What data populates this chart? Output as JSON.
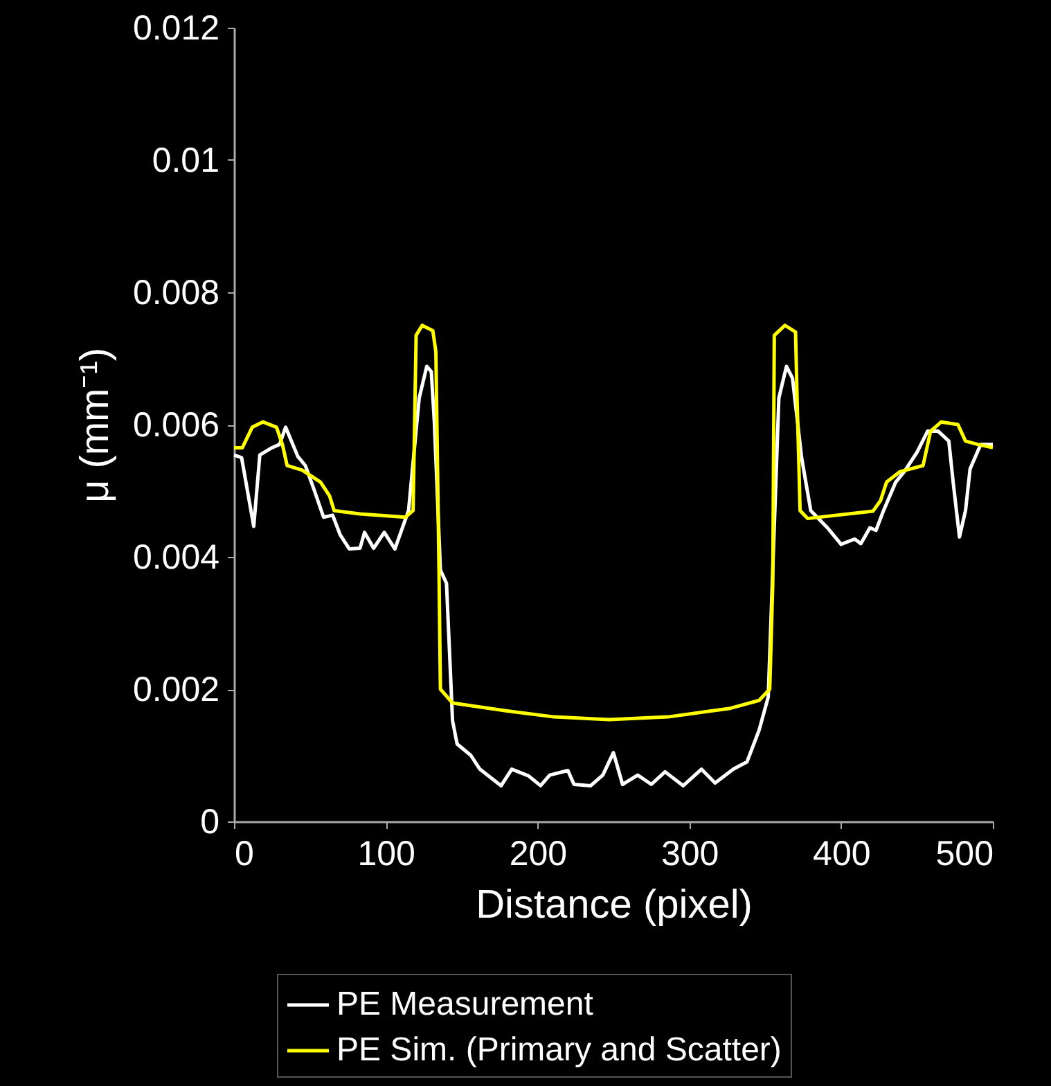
{
  "chart_data": {
    "type": "line",
    "xlabel": "Distance (pixel)",
    "ylabel": "μ (mm⁻¹)",
    "xlim": [
      0,
      500
    ],
    "ylim": [
      0,
      0.012
    ],
    "xticks": [
      0,
      100,
      200,
      300,
      400,
      500
    ],
    "yticks": [
      0,
      0.002,
      0.004,
      0.006,
      0.008,
      0.01,
      0.012
    ],
    "grid": false,
    "legend": "bottom",
    "marker": "none",
    "line_style": "solid",
    "series": [
      {
        "name": "PE Measurement",
        "color": "#ffffff",
        "x": [
          0,
          5,
          13,
          17,
          25,
          30,
          34,
          42,
          47,
          53,
          59,
          65,
          70,
          76,
          83,
          86,
          92,
          99,
          106,
          115,
          122,
          127,
          130,
          132,
          136,
          140,
          144,
          147,
          156,
          162,
          176,
          183,
          194,
          202,
          208,
          220,
          224,
          235,
          243,
          250,
          256,
          266,
          275,
          284,
          296,
          308,
          317,
          329,
          338,
          346,
          352,
          359,
          364,
          368,
          374,
          380,
          391,
          400,
          409,
          413,
          419,
          423,
          428,
          436,
          442,
          450,
          457,
          464,
          471,
          474,
          478,
          482,
          485,
          492,
          500
        ],
        "values": [
          0.00554,
          0.0055,
          0.00446,
          0.00554,
          0.00565,
          0.0057,
          0.00596,
          0.00552,
          0.00538,
          0.005,
          0.0046,
          0.00463,
          0.00433,
          0.00412,
          0.00413,
          0.00437,
          0.00413,
          0.00437,
          0.00412,
          0.0047,
          0.0064,
          0.00688,
          0.0068,
          0.00604,
          0.0038,
          0.0036,
          0.00152,
          0.00117,
          0.001,
          0.00079,
          0.00054,
          0.00079,
          0.00069,
          0.00054,
          0.0007,
          0.00077,
          0.00056,
          0.00054,
          0.0007,
          0.00104,
          0.00056,
          0.0007,
          0.00056,
          0.00075,
          0.00054,
          0.00079,
          0.00058,
          0.00079,
          0.0009,
          0.00138,
          0.00188,
          0.0064,
          0.00688,
          0.0067,
          0.0055,
          0.0047,
          0.00444,
          0.00419,
          0.00427,
          0.0042,
          0.00444,
          0.0044,
          0.0047,
          0.00513,
          0.0053,
          0.00558,
          0.0059,
          0.0059,
          0.00575,
          0.0051,
          0.0043,
          0.0047,
          0.00533,
          0.0057,
          0.0057
        ]
      },
      {
        "name": "PE Sim. (Primary and Scatter)",
        "color": "#ffff00",
        "x": [
          0,
          5.5,
          12,
          19,
          28,
          32,
          35,
          45,
          57,
          63,
          66,
          83,
          113,
          118,
          120,
          124,
          131,
          133,
          135,
          136,
          144,
          180,
          211,
          247,
          286,
          327,
          346,
          353,
          355,
          356,
          363,
          370,
          371,
          373,
          378,
          421,
          426,
          430,
          439,
          454,
          459,
          466,
          477,
          482,
          490,
          500
        ],
        "values": [
          0.00565,
          0.00565,
          0.00596,
          0.00604,
          0.00596,
          0.00569,
          0.00538,
          0.00531,
          0.00513,
          0.00492,
          0.0047,
          0.00465,
          0.0046,
          0.0047,
          0.00735,
          0.0075,
          0.00742,
          0.0071,
          0.0039,
          0.002,
          0.00179,
          0.00167,
          0.00158,
          0.00154,
          0.00158,
          0.00171,
          0.00183,
          0.002,
          0.0036,
          0.00735,
          0.0075,
          0.0074,
          0.0064,
          0.0047,
          0.00458,
          0.00469,
          0.00485,
          0.00513,
          0.00529,
          0.00538,
          0.0059,
          0.00604,
          0.006,
          0.00575,
          0.0057,
          0.00565
        ]
      }
    ]
  }
}
